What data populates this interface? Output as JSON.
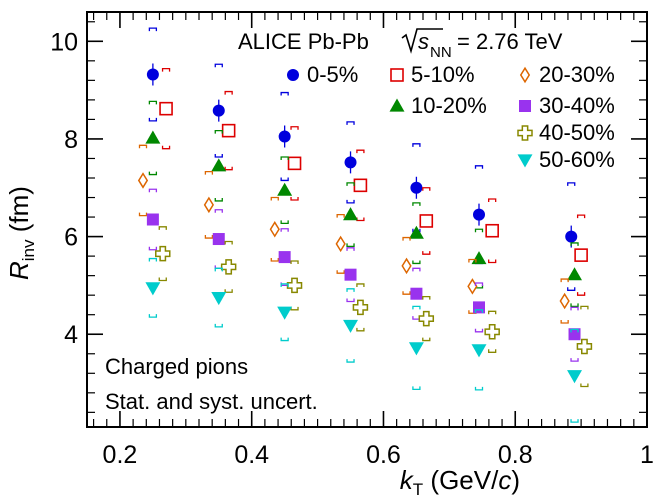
{
  "chart_data": {
    "type": "scatter",
    "header": {
      "experiment": "ALICE Pb-Pb",
      "sqrt_symbol": "s",
      "sqrt_subscript": "NN",
      "energy": "= 2.76 TeV"
    },
    "annotations": [
      "Charged pions",
      "Stat. and syst. uncert."
    ],
    "xlabel": {
      "main": "k",
      "sub": "T",
      "unit_prefix": " (GeV/",
      "unit_italic": "c",
      "unit_suffix": ")"
    },
    "ylabel": {
      "main": "R",
      "sub": "inv",
      "unit": " (fm)"
    },
    "xlim": [
      0.15,
      1.0
    ],
    "ylim": [
      2.1,
      10.6
    ],
    "xticks": [
      0.2,
      0.4,
      0.6,
      0.8,
      1.0
    ],
    "xtick_labels": [
      "0.2",
      "0.4",
      "0.6",
      "0.8",
      "1"
    ],
    "yticks": [
      4,
      6,
      8,
      10
    ],
    "ytick_labels": [
      "4",
      "6",
      "8",
      "10"
    ],
    "grid": false,
    "series": [
      {
        "name": "0-5%",
        "marker": "circle",
        "color": "#0000dd",
        "filled": true,
        "x": [
          0.25,
          0.35,
          0.45,
          0.55,
          0.65,
          0.745,
          0.885
        ],
        "y": [
          9.32,
          8.58,
          8.05,
          7.52,
          7.0,
          6.45,
          6.0
        ],
        "syst": [
          0.95,
          0.95,
          0.9,
          0.83,
          0.9,
          1.0,
          1.1
        ]
      },
      {
        "name": "5-10%",
        "marker": "square",
        "color": "#dd0000",
        "filled": false,
        "x": [
          0.27,
          0.365,
          0.465,
          0.565,
          0.665,
          0.765,
          0.9
        ],
        "y": [
          8.62,
          8.17,
          7.5,
          7.05,
          6.32,
          6.12,
          5.62
        ],
        "syst": [
          0.82,
          0.8,
          0.75,
          0.72,
          0.68,
          0.65,
          0.82
        ]
      },
      {
        "name": "10-20%",
        "marker": "triangle-up",
        "color": "#008800",
        "filled": true,
        "x": [
          0.25,
          0.35,
          0.45,
          0.55,
          0.65,
          0.745,
          0.89
        ],
        "y": [
          8.02,
          7.45,
          6.95,
          6.45,
          6.07,
          5.55,
          5.22
        ],
        "syst": [
          0.75,
          0.72,
          0.68,
          0.65,
          0.62,
          0.6,
          0.65
        ]
      },
      {
        "name": "20-30%",
        "marker": "diamond",
        "color": "#dd6600",
        "filled": false,
        "x": [
          0.235,
          0.335,
          0.435,
          0.535,
          0.635,
          0.735,
          0.875
        ],
        "y": [
          7.15,
          6.65,
          6.15,
          5.85,
          5.4,
          4.98,
          4.68
        ],
        "syst": [
          0.72,
          0.68,
          0.65,
          0.6,
          0.58,
          0.55,
          0.45
        ]
      },
      {
        "name": "30-40%",
        "marker": "square",
        "color": "#9933ee",
        "filled": true,
        "x": [
          0.25,
          0.35,
          0.45,
          0.55,
          0.65,
          0.745,
          0.89
        ],
        "y": [
          6.35,
          5.95,
          5.58,
          5.22,
          4.83,
          4.55,
          4.0
        ],
        "syst": [
          0.62,
          0.6,
          0.58,
          0.55,
          0.52,
          0.5,
          0.55
        ]
      },
      {
        "name": "40-50%",
        "marker": "cross-open",
        "color": "#888800",
        "filled": false,
        "x": [
          0.265,
          0.365,
          0.465,
          0.565,
          0.665,
          0.765,
          0.905
        ],
        "y": [
          5.65,
          5.38,
          5.0,
          4.55,
          4.32,
          4.05,
          3.75
        ],
        "syst": [
          0.55,
          0.52,
          0.5,
          0.48,
          0.45,
          0.42,
          0.82
        ]
      },
      {
        "name": "50-60%",
        "marker": "triangle-down",
        "color": "#00cccc",
        "filled": true,
        "x": [
          0.25,
          0.35,
          0.45,
          0.55,
          0.65,
          0.745,
          0.89
        ],
        "y": [
          4.95,
          4.75,
          4.45,
          4.18,
          3.72,
          3.68,
          3.15
        ],
        "syst": [
          0.6,
          0.6,
          0.58,
          0.75,
          0.85,
          0.82,
          0.95
        ]
      }
    ],
    "legend": [
      {
        "series": 0,
        "col": 0,
        "row": 0
      },
      {
        "series": 1,
        "col": 1,
        "row": 0
      },
      {
        "series": 3,
        "col": 2,
        "row": 0
      },
      {
        "series": 2,
        "col": 1,
        "row": 1
      },
      {
        "series": 4,
        "col": 2,
        "row": 1
      },
      {
        "series": 5,
        "col": 2,
        "row": 2
      },
      {
        "series": 6,
        "col": 2,
        "row": 3
      }
    ]
  }
}
